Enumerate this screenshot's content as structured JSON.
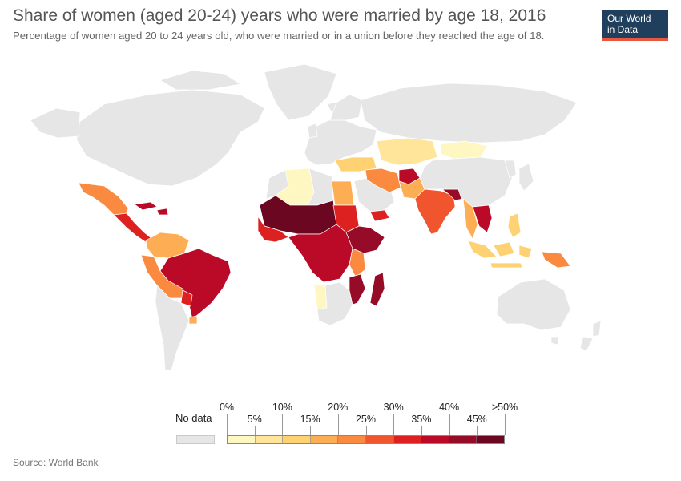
{
  "header": {
    "title": "Share of women (aged 20-24) years who were married by age 18, 2016",
    "subtitle": "Percentage of women aged 20 to 24 years old, who were married or in a union before they reached the age of 18."
  },
  "logo": {
    "line1": "Our World",
    "line2": "in Data"
  },
  "legend": {
    "no_data_label": "No data",
    "no_data_color": "#e6e6e6",
    "bins": [
      "#fff7c2",
      "#ffe59a",
      "#fed173",
      "#fdae55",
      "#f98a40",
      "#f1552d",
      "#dd2121",
      "#ba0a28",
      "#950b28",
      "#6b0721"
    ],
    "ticks_upper": [
      "0%",
      "10%",
      "20%",
      "30%",
      "40%",
      ">50%"
    ],
    "ticks_lower": [
      "5%",
      "15%",
      "25%",
      "35%",
      "45%"
    ]
  },
  "map_regions": [
    {
      "region": "North America",
      "color": "#e6e6e6"
    },
    {
      "region": "Greenland",
      "color": "#e6e6e6"
    },
    {
      "region": "Mexico",
      "color": "#f98a40"
    },
    {
      "region": "Central America",
      "color": "#dd2121"
    },
    {
      "region": "Caribbean",
      "color": "#ba0a28"
    },
    {
      "region": "Colombia / Venezuela",
      "color": "#fdae55"
    },
    {
      "region": "Peru / Bolivia",
      "color": "#f98a40"
    },
    {
      "region": "Brazil",
      "color": "#ba0a28"
    },
    {
      "region": "Paraguay",
      "color": "#dd2121"
    },
    {
      "region": "Uruguay",
      "color": "#fdae55"
    },
    {
      "region": "Argentina / Chile",
      "color": "#e6e6e6"
    },
    {
      "region": "Europe",
      "color": "#e6e6e6"
    },
    {
      "region": "Russia",
      "color": "#e6e6e6"
    },
    {
      "region": "Algeria",
      "color": "#fff7c2"
    },
    {
      "region": "Morocco",
      "color": "#e6e6e6"
    },
    {
      "region": "Egypt",
      "color": "#fdae55"
    },
    {
      "region": "Sahel",
      "color": "#6b0721"
    },
    {
      "region": "West Africa",
      "color": "#dd2121"
    },
    {
      "region": "Central Africa",
      "color": "#ba0a28"
    },
    {
      "region": "Sudan",
      "color": "#dd2121"
    },
    {
      "region": "Ethiopia / Somalia",
      "color": "#950b28"
    },
    {
      "region": "East Africa",
      "color": "#f98a40"
    },
    {
      "region": "Southern Africa",
      "color": "#e6e6e6"
    },
    {
      "region": "Namibia",
      "color": "#fff7c2"
    },
    {
      "region": "Mozambique",
      "color": "#950b28"
    },
    {
      "region": "Madagascar",
      "color": "#950b28"
    },
    {
      "region": "Middle East",
      "color": "#e6e6e6"
    },
    {
      "region": "Yemen",
      "color": "#dd2121"
    },
    {
      "region": "Turkey / Caucasus",
      "color": "#fed173"
    },
    {
      "region": "Iran / Iraq",
      "color": "#f98a40"
    },
    {
      "region": "Central Asia",
      "color": "#ffe59a"
    },
    {
      "region": "Mongolia",
      "color": "#fff7c2"
    },
    {
      "region": "Afghanistan",
      "color": "#ba0a28"
    },
    {
      "region": "Pakistan",
      "color": "#fdae55"
    },
    {
      "region": "India",
      "color": "#f1552d"
    },
    {
      "region": "Nepal / Bangladesh",
      "color": "#950b28"
    },
    {
      "region": "China",
      "color": "#e6e6e6"
    },
    {
      "region": "Laos / Vietnam",
      "color": "#ba0a28"
    },
    {
      "region": "Thailand",
      "color": "#fdae55"
    },
    {
      "region": "Philippines",
      "color": "#fed173"
    },
    {
      "region": "Indonesia",
      "color": "#fed173"
    },
    {
      "region": "Papua New Guinea",
      "color": "#f98a40"
    },
    {
      "region": "Japan",
      "color": "#e6e6e6"
    },
    {
      "region": "Australia",
      "color": "#e6e6e6"
    },
    {
      "region": "New Zealand",
      "color": "#e6e6e6"
    }
  ],
  "footer": {
    "source": "Source: World Bank"
  }
}
